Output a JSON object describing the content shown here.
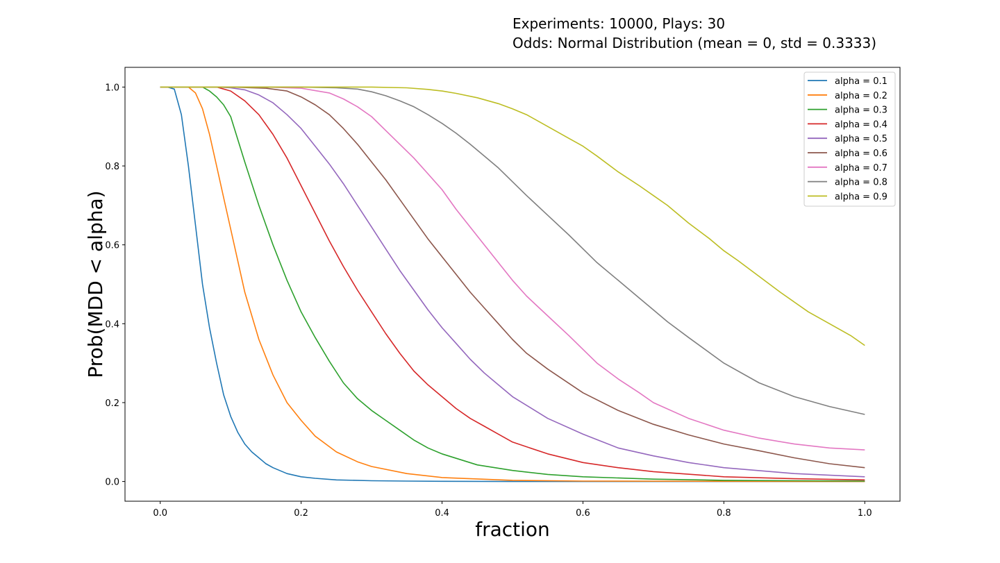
{
  "header": {
    "line1": "Experiments: 10000, Plays: 30",
    "line2": "Odds: Normal Distribution (mean = 0, std = 0.3333)"
  },
  "chart_data": {
    "type": "line",
    "title": "Experiments: 10000, Plays: 30 / Odds: Normal Distribution (mean = 0, std = 0.3333)",
    "xlabel": "fraction",
    "ylabel": "Prob(MDD < alpha)",
    "xlim": [
      -0.05,
      1.05
    ],
    "ylim": [
      -0.05,
      1.05
    ],
    "xticks": [
      0.0,
      0.2,
      0.4,
      0.6,
      0.8,
      1.0
    ],
    "xtick_labels": [
      "0.0",
      "0.2",
      "0.4",
      "0.6",
      "0.8",
      "1.0"
    ],
    "yticks": [
      0.0,
      0.2,
      0.4,
      0.6,
      0.8,
      1.0
    ],
    "ytick_labels": [
      "0.0",
      "0.2",
      "0.4",
      "0.6",
      "0.8",
      "1.0"
    ],
    "grid": false,
    "legend_position": "top-right",
    "series": [
      {
        "name": "alpha = 0.1",
        "color": "#1f77b4",
        "x": [
          0,
          0.01,
          0.02,
          0.03,
          0.04,
          0.05,
          0.06,
          0.07,
          0.08,
          0.09,
          0.1,
          0.11,
          0.12,
          0.13,
          0.14,
          0.15,
          0.16,
          0.18,
          0.2,
          0.22,
          0.25,
          0.3,
          0.35,
          0.4,
          0.5,
          0.6,
          0.8,
          1.0
        ],
        "y": [
          1.0,
          1.0,
          0.995,
          0.93,
          0.8,
          0.65,
          0.5,
          0.39,
          0.3,
          0.22,
          0.165,
          0.125,
          0.095,
          0.075,
          0.06,
          0.045,
          0.035,
          0.02,
          0.012,
          0.008,
          0.004,
          0.002,
          0.001,
          0.0005,
          0.0,
          0.0,
          0.0,
          0.0
        ]
      },
      {
        "name": "alpha = 0.2",
        "color": "#ff7f0e",
        "x": [
          0,
          0.02,
          0.04,
          0.05,
          0.06,
          0.07,
          0.08,
          0.09,
          0.1,
          0.12,
          0.14,
          0.16,
          0.18,
          0.2,
          0.22,
          0.25,
          0.28,
          0.3,
          0.35,
          0.4,
          0.5,
          0.6,
          0.8,
          1.0
        ],
        "y": [
          1.0,
          1.0,
          1.0,
          0.985,
          0.945,
          0.88,
          0.8,
          0.72,
          0.64,
          0.48,
          0.36,
          0.27,
          0.2,
          0.155,
          0.115,
          0.075,
          0.05,
          0.038,
          0.02,
          0.01,
          0.003,
          0.001,
          0.0005,
          0.0
        ]
      },
      {
        "name": "alpha = 0.3",
        "color": "#2ca02c",
        "x": [
          0,
          0.04,
          0.06,
          0.07,
          0.08,
          0.09,
          0.1,
          0.12,
          0.14,
          0.16,
          0.18,
          0.2,
          0.22,
          0.24,
          0.26,
          0.28,
          0.3,
          0.32,
          0.34,
          0.36,
          0.38,
          0.4,
          0.45,
          0.5,
          0.55,
          0.6,
          0.7,
          0.8,
          0.9,
          1.0
        ],
        "y": [
          1.0,
          1.0,
          1.0,
          0.99,
          0.975,
          0.955,
          0.925,
          0.81,
          0.7,
          0.6,
          0.51,
          0.43,
          0.365,
          0.305,
          0.25,
          0.21,
          0.18,
          0.155,
          0.13,
          0.105,
          0.085,
          0.07,
          0.042,
          0.028,
          0.018,
          0.012,
          0.006,
          0.003,
          0.002,
          0.001
        ]
      },
      {
        "name": "alpha = 0.4",
        "color": "#d62728",
        "x": [
          0,
          0.05,
          0.08,
          0.1,
          0.12,
          0.14,
          0.16,
          0.18,
          0.2,
          0.22,
          0.24,
          0.26,
          0.28,
          0.3,
          0.32,
          0.34,
          0.36,
          0.38,
          0.4,
          0.42,
          0.44,
          0.46,
          0.48,
          0.5,
          0.55,
          0.6,
          0.65,
          0.7,
          0.8,
          0.9,
          1.0
        ],
        "y": [
          1.0,
          1.0,
          1.0,
          0.99,
          0.965,
          0.93,
          0.88,
          0.82,
          0.75,
          0.68,
          0.61,
          0.545,
          0.485,
          0.43,
          0.375,
          0.325,
          0.28,
          0.245,
          0.215,
          0.185,
          0.16,
          0.14,
          0.12,
          0.1,
          0.07,
          0.048,
          0.035,
          0.025,
          0.012,
          0.007,
          0.004
        ]
      },
      {
        "name": "alpha = 0.5",
        "color": "#9467bd",
        "x": [
          0,
          0.08,
          0.1,
          0.12,
          0.14,
          0.16,
          0.18,
          0.2,
          0.22,
          0.24,
          0.26,
          0.28,
          0.3,
          0.32,
          0.34,
          0.36,
          0.38,
          0.4,
          0.42,
          0.44,
          0.46,
          0.48,
          0.5,
          0.55,
          0.6,
          0.65,
          0.7,
          0.75,
          0.8,
          0.9,
          1.0
        ],
        "y": [
          1.0,
          1.0,
          0.998,
          0.993,
          0.98,
          0.96,
          0.93,
          0.895,
          0.85,
          0.805,
          0.755,
          0.7,
          0.645,
          0.59,
          0.535,
          0.485,
          0.435,
          0.39,
          0.35,
          0.31,
          0.275,
          0.245,
          0.215,
          0.16,
          0.12,
          0.085,
          0.065,
          0.048,
          0.035,
          0.02,
          0.012
        ]
      },
      {
        "name": "alpha = 0.6",
        "color": "#8c564b",
        "x": [
          0,
          0.1,
          0.15,
          0.18,
          0.2,
          0.22,
          0.24,
          0.26,
          0.28,
          0.3,
          0.32,
          0.34,
          0.36,
          0.38,
          0.4,
          0.42,
          0.44,
          0.46,
          0.48,
          0.5,
          0.52,
          0.55,
          0.6,
          0.65,
          0.7,
          0.75,
          0.8,
          0.85,
          0.9,
          0.95,
          1.0
        ],
        "y": [
          1.0,
          1.0,
          0.997,
          0.99,
          0.975,
          0.955,
          0.93,
          0.895,
          0.855,
          0.81,
          0.765,
          0.715,
          0.665,
          0.615,
          0.57,
          0.525,
          0.48,
          0.44,
          0.4,
          0.36,
          0.325,
          0.285,
          0.225,
          0.18,
          0.145,
          0.118,
          0.095,
          0.078,
          0.06,
          0.045,
          0.035
        ]
      },
      {
        "name": "alpha = 0.7",
        "color": "#e377c2",
        "x": [
          0,
          0.15,
          0.2,
          0.24,
          0.26,
          0.28,
          0.3,
          0.32,
          0.34,
          0.36,
          0.38,
          0.4,
          0.42,
          0.44,
          0.46,
          0.48,
          0.5,
          0.52,
          0.55,
          0.58,
          0.6,
          0.62,
          0.65,
          0.68,
          0.7,
          0.75,
          0.8,
          0.85,
          0.9,
          0.95,
          1.0
        ],
        "y": [
          1.0,
          1.0,
          0.997,
          0.985,
          0.97,
          0.95,
          0.925,
          0.89,
          0.855,
          0.82,
          0.78,
          0.74,
          0.69,
          0.645,
          0.6,
          0.555,
          0.51,
          0.47,
          0.42,
          0.37,
          0.335,
          0.3,
          0.26,
          0.225,
          0.2,
          0.16,
          0.13,
          0.11,
          0.095,
          0.085,
          0.08
        ]
      },
      {
        "name": "alpha = 0.8",
        "color": "#7f7f7f",
        "x": [
          0,
          0.2,
          0.25,
          0.28,
          0.3,
          0.32,
          0.34,
          0.36,
          0.38,
          0.4,
          0.42,
          0.44,
          0.46,
          0.48,
          0.5,
          0.52,
          0.55,
          0.58,
          0.6,
          0.62,
          0.65,
          0.68,
          0.7,
          0.72,
          0.75,
          0.8,
          0.85,
          0.9,
          0.95,
          1.0
        ],
        "y": [
          1.0,
          1.0,
          0.998,
          0.995,
          0.988,
          0.978,
          0.965,
          0.95,
          0.93,
          0.908,
          0.883,
          0.855,
          0.825,
          0.795,
          0.76,
          0.725,
          0.675,
          0.625,
          0.59,
          0.555,
          0.51,
          0.465,
          0.435,
          0.405,
          0.365,
          0.3,
          0.25,
          0.215,
          0.19,
          0.17
        ]
      },
      {
        "name": "alpha = 0.9",
        "color": "#bcbd22",
        "x": [
          0,
          0.3,
          0.35,
          0.38,
          0.4,
          0.42,
          0.45,
          0.48,
          0.5,
          0.52,
          0.55,
          0.58,
          0.6,
          0.62,
          0.65,
          0.68,
          0.7,
          0.72,
          0.75,
          0.78,
          0.8,
          0.82,
          0.85,
          0.88,
          0.9,
          0.92,
          0.95,
          0.98,
          1.0
        ],
        "y": [
          1.0,
          1.0,
          0.998,
          0.994,
          0.99,
          0.984,
          0.973,
          0.958,
          0.945,
          0.93,
          0.9,
          0.87,
          0.85,
          0.825,
          0.785,
          0.75,
          0.725,
          0.7,
          0.655,
          0.615,
          0.585,
          0.56,
          0.52,
          0.48,
          0.455,
          0.43,
          0.4,
          0.37,
          0.345
        ]
      }
    ]
  }
}
